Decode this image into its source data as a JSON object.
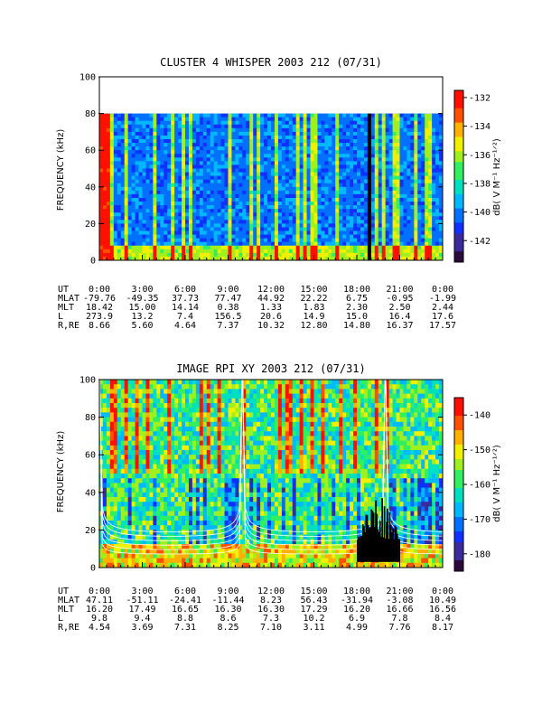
{
  "chart_data": [
    {
      "type": "heatmap",
      "title": "CLUSTER 4 WHISPER 2003 212 (07/31)",
      "ylabel": "FREQUENCY (kHz)",
      "ylim": [
        0,
        100
      ],
      "yticks": [
        0,
        20,
        40,
        60,
        80,
        100
      ],
      "data_ymax": 80,
      "xlim": [
        0,
        24
      ],
      "x_tick_labels": [
        "0:00",
        "3:00",
        "6:00",
        "9:00",
        "12:00",
        "15:00",
        "18:00",
        "21:00",
        "0:00"
      ],
      "colorbar": {
        "label": "dB( V M⁻¹ Hz⁻¹ᐟ²)",
        "range": [
          -143.5,
          -131.5
        ],
        "ticks": [
          -132,
          -134,
          -136,
          -138,
          -140,
          -142
        ]
      },
      "ephemeris": [
        {
          "name": "UT",
          "values": [
            "0:00",
            "3:00",
            "6:00",
            "9:00",
            "12:00",
            "15:00",
            "18:00",
            "21:00",
            "0:00"
          ]
        },
        {
          "name": "MLAT",
          "values": [
            "-79.76",
            "-49.35",
            "37.73",
            "77.47",
            "44.92",
            "22.22",
            "6.75",
            "-0.95",
            "-1.99"
          ]
        },
        {
          "name": "MLT",
          "values": [
            "18.42",
            "15.00",
            "14.14",
            "0.38",
            "1.33",
            "1.83",
            "2.30",
            "2.50",
            "2.44"
          ]
        },
        {
          "name": "L",
          "values": [
            "273.9",
            "13.2",
            "7.4",
            "156.5",
            "20.6",
            "14.9",
            "15.0",
            "16.4",
            "17.6"
          ]
        },
        {
          "name": "R,RE",
          "values": [
            "8.66",
            "5.60",
            "4.64",
            "7.37",
            "10.32",
            "12.80",
            "14.80",
            "16.37",
            "17.57"
          ]
        }
      ]
    },
    {
      "type": "heatmap",
      "title": "IMAGE RPI XY 2003 212 (07/31)",
      "ylabel": "FREQUENCY (kHz)",
      "ylim": [
        0,
        100
      ],
      "yticks": [
        0,
        20,
        40,
        60,
        80,
        100
      ],
      "data_ymax": 100,
      "xlim": [
        0,
        24
      ],
      "x_tick_labels": [
        "0:00",
        "3:00",
        "6:00",
        "9:00",
        "12:00",
        "15:00",
        "18:00",
        "21:00",
        "0:00"
      ],
      "colorbar": {
        "label": "dB( V M⁻¹ Hz⁻¹ᐟ²)",
        "range": [
          -185,
          -135
        ],
        "ticks": [
          -140,
          -150,
          -160,
          -170,
          -180
        ]
      },
      "ephemeris": [
        {
          "name": "UT",
          "values": [
            "0:00",
            "3:00",
            "6:00",
            "9:00",
            "12:00",
            "15:00",
            "18:00",
            "21:00",
            "0:00"
          ]
        },
        {
          "name": "MLAT",
          "values": [
            "47.11",
            "-51.11",
            "-24.41",
            "-11.44",
            "8.23",
            "56.43",
            "-31.94",
            "-3.08",
            "10.49"
          ]
        },
        {
          "name": "MLT",
          "values": [
            "16.20",
            "17.49",
            "16.65",
            "16.30",
            "16.30",
            "17.29",
            "16.20",
            "16.66",
            "16.56"
          ]
        },
        {
          "name": "L",
          "values": [
            "9.8",
            "9.4",
            "8.8",
            "8.6",
            "7.3",
            "10.2",
            "6.9",
            "7.8",
            "8.4"
          ]
        },
        {
          "name": "R,RE",
          "values": [
            "4.54",
            "3.69",
            "7.31",
            "8.25",
            "7.10",
            "3.11",
            "4.99",
            "7.76",
            "8.17"
          ]
        }
      ]
    }
  ]
}
